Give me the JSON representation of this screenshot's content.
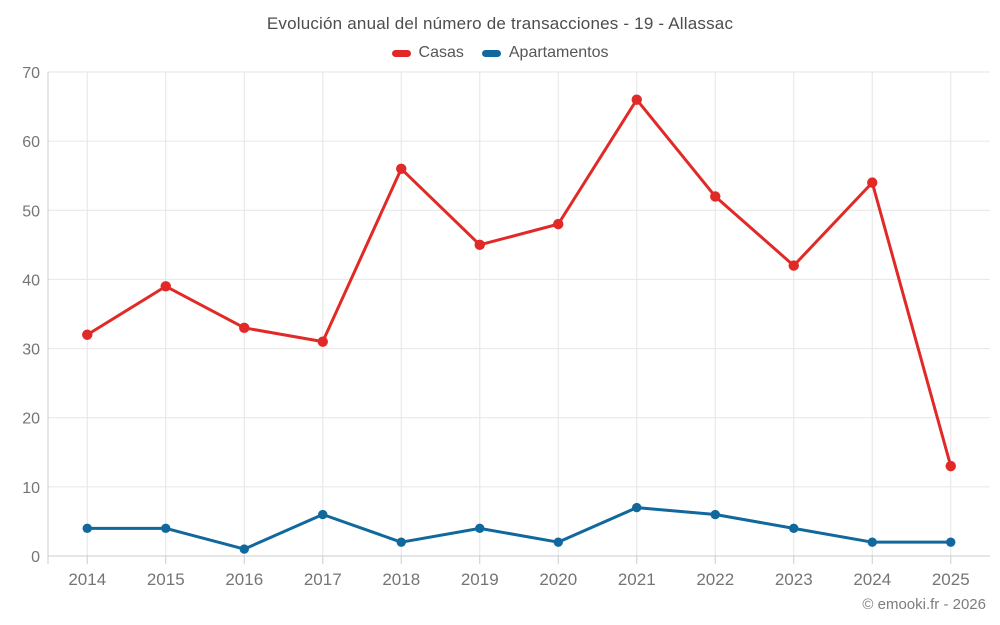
{
  "title": "Evolución anual del número de transacciones - 19 - Allassac",
  "footer": "© emooki.fr - 2026",
  "colors": {
    "grid": "#e6e6e6",
    "axis": "#cccccc",
    "tick_text": "#757575",
    "title_text": "#4d4d4d",
    "legend_text": "#565656",
    "background": "#ffffff",
    "casas": "#e12a27",
    "apartamentos": "#11689d"
  },
  "chart_data": {
    "type": "line",
    "title": "Evolución anual del número de transacciones - 19 - Allassac",
    "categories": [
      "2014",
      "2015",
      "2016",
      "2017",
      "2018",
      "2019",
      "2020",
      "2021",
      "2022",
      "2023",
      "2024",
      "2025"
    ],
    "series": [
      {
        "name": "Casas",
        "color": "#e12a27",
        "marker_radius": 5.2,
        "values": [
          32,
          39,
          33,
          31,
          56,
          45,
          48,
          66,
          52,
          42,
          54,
          13
        ]
      },
      {
        "name": "Apartamentos",
        "color": "#11689d",
        "marker_radius": 4.7,
        "values": [
          4,
          4,
          1,
          6,
          2,
          4,
          2,
          7,
          6,
          4,
          2,
          2
        ]
      }
    ],
    "xlabel": "",
    "ylabel": "",
    "ylim": [
      0,
      70
    ],
    "y_ticks": [
      0,
      10,
      20,
      30,
      40,
      50,
      60,
      70
    ],
    "grid": true,
    "legend_position": "top"
  }
}
